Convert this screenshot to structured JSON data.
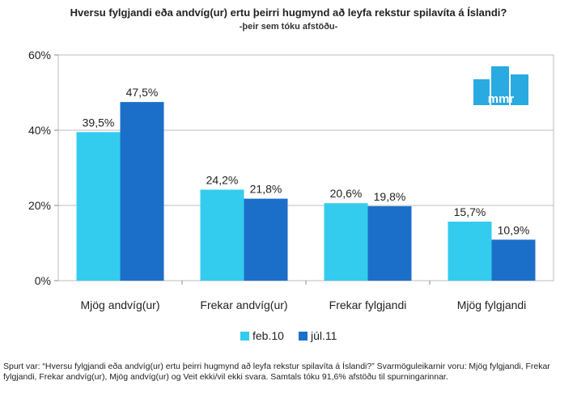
{
  "header": {
    "title": "Hversu fylgjandi eða andvíg(ur) ertu þeirri hugmynd að leyfa rekstur spilavíta á Íslandi?",
    "subtitle": "-þeir sem tóku afstöðu-"
  },
  "logo": {
    "text": "mmr",
    "color": "#29abe2"
  },
  "chart_data": {
    "type": "bar",
    "categories": [
      "Mjög andvíg(ur)",
      "Frekar andvíg(ur)",
      "Frekar fylgjandi",
      "Mjög fylgjandi"
    ],
    "series": [
      {
        "name": "feb.10",
        "values": [
          39.5,
          24.2,
          20.6,
          15.7
        ],
        "labels": [
          "39,5%",
          "24,2%",
          "20,6%",
          "15,7%"
        ],
        "color": "#33ccee"
      },
      {
        "name": "júl.11",
        "values": [
          47.5,
          21.8,
          19.8,
          10.9
        ],
        "labels": [
          "47,5%",
          "21,8%",
          "19,8%",
          "10,9%"
        ],
        "color": "#1c6fc9"
      }
    ],
    "ylim": [
      0,
      60
    ],
    "yticks": [
      0,
      20,
      40,
      60
    ],
    "ytick_labels": [
      "0%",
      "20%",
      "40%",
      "60%"
    ],
    "grid": true,
    "legend": "bottom"
  },
  "footnote": "Spurt var: “Hversu fylgjandi eða andvíg(ur) ertu þeirri hugmynd að leyfa rekstur spilavíta á Íslandi?” Svarmöguleikarnir voru: Mjög fylgjandi, Frekar fylgjandi, Frekar andvíg(ur), Mjög andvíg(ur) og Veit ekki/vil ekki svara. Samtals tóku 91,6% afstöðu til spurningarinnar."
}
